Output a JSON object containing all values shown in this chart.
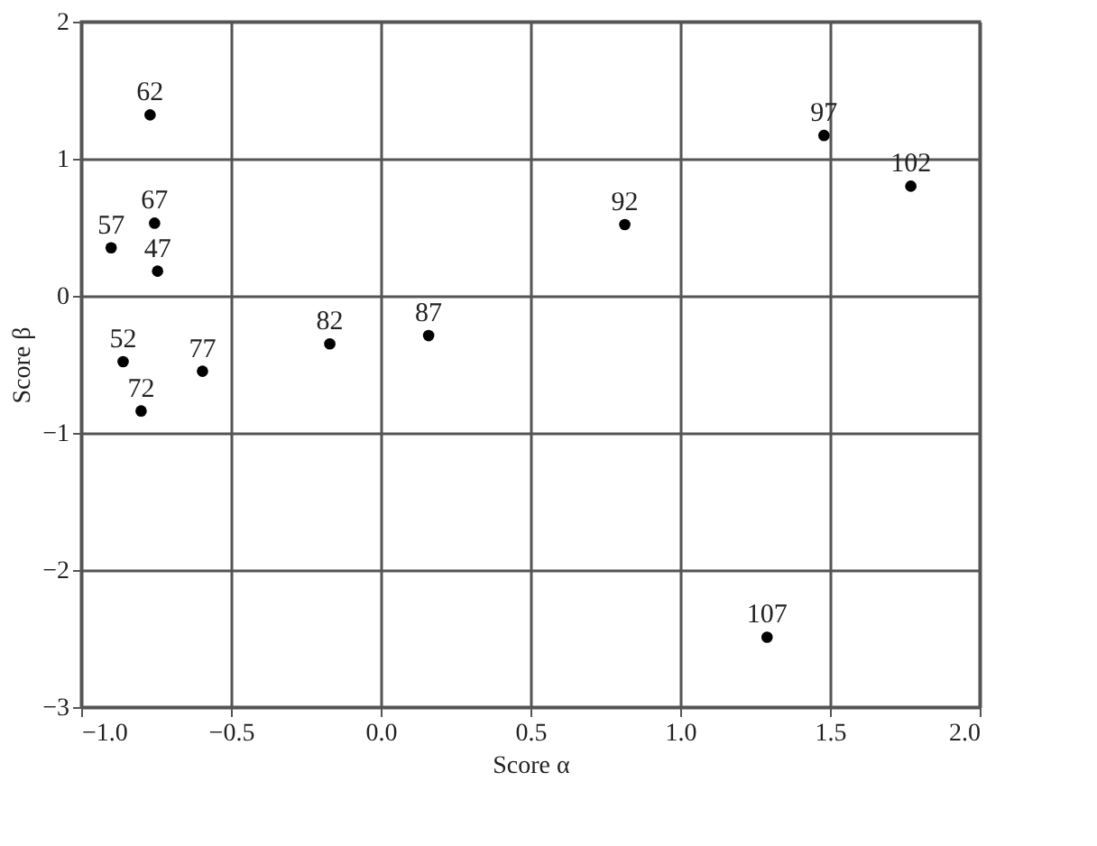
{
  "chart_data": {
    "type": "scatter",
    "xlabel": "Score α",
    "ylabel": "Score β",
    "x": [
      -0.745,
      -0.86,
      -0.9,
      -0.77,
      -0.755,
      -0.8,
      -0.595,
      -0.17,
      0.16,
      0.815,
      1.48,
      1.77,
      1.29
    ],
    "values": [
      0.18,
      -0.48,
      0.35,
      1.32,
      0.53,
      -0.84,
      -0.55,
      -0.35,
      -0.29,
      0.52,
      1.17,
      0.8,
      -2.49
    ],
    "color": "#000000",
    "marker": "circle",
    "annotations": [
      {
        "text": "47",
        "x": -0.745,
        "y": 0.18
      },
      {
        "text": "52",
        "x": -0.86,
        "y": -0.48
      },
      {
        "text": "57",
        "x": -0.9,
        "y": 0.35
      },
      {
        "text": "62",
        "x": -0.77,
        "y": 1.32
      },
      {
        "text": "67",
        "x": -0.755,
        "y": 0.53
      },
      {
        "text": "72",
        "x": -0.8,
        "y": -0.84
      },
      {
        "text": "77",
        "x": -0.595,
        "y": -0.55
      },
      {
        "text": "82",
        "x": -0.17,
        "y": -0.35
      },
      {
        "text": "87",
        "x": 0.16,
        "y": -0.29
      },
      {
        "text": "92",
        "x": 0.815,
        "y": 0.52
      },
      {
        "text": "97",
        "x": 1.48,
        "y": 1.17
      },
      {
        "text": "102",
        "x": 1.77,
        "y": 0.8
      },
      {
        "text": "107",
        "x": 1.29,
        "y": -2.49
      }
    ],
    "xlim": [
      -1.0,
      2.0
    ],
    "xticks": [
      {
        "value": -1.0,
        "label": "−1.0"
      },
      {
        "value": -0.5,
        "label": "−0.5"
      },
      {
        "value": 0.0,
        "label": "0.0"
      },
      {
        "value": 0.5,
        "label": "0.5"
      },
      {
        "value": 1.0,
        "label": "1.0"
      },
      {
        "value": 1.5,
        "label": "1.5"
      },
      {
        "value": 2.0,
        "label": "2.0"
      }
    ],
    "ylim": [
      -3,
      2
    ],
    "yticks": [
      {
        "value": -3,
        "label": "−3"
      },
      {
        "value": -2,
        "label": "−2"
      },
      {
        "value": -1,
        "label": "−1"
      },
      0,
      1,
      2
    ],
    "grid": true
  }
}
